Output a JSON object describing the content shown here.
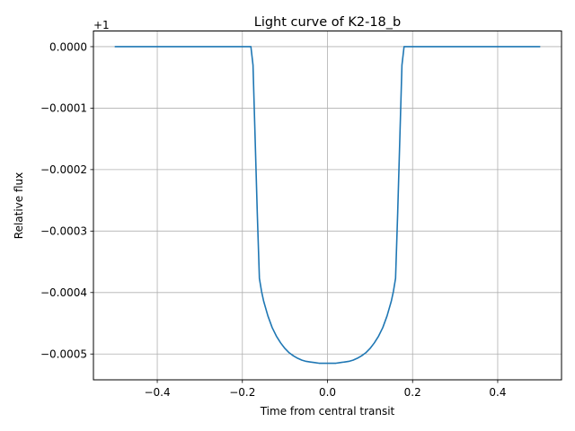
{
  "chart_data": {
    "type": "line",
    "title": "Light curve of K2-18_b",
    "xlabel": "Time from central transit",
    "ylabel": "Relative flux",
    "y_offset_label": "+1",
    "y_offset": 1,
    "xlim": [
      -0.55,
      0.55
    ],
    "ylim": [
      -0.000542,
      2.55e-05
    ],
    "x_ticks": [
      -0.4,
      -0.2,
      0.0,
      0.2,
      0.4
    ],
    "x_tick_labels": [
      "−0.4",
      "−0.2",
      "0.0",
      "0.2",
      "0.4"
    ],
    "y_ticks": [
      0.0,
      -0.0001,
      -0.0002,
      -0.0003,
      -0.0004,
      -0.0005
    ],
    "y_tick_labels": [
      "0.0000",
      "−0.0001",
      "−0.0002",
      "−0.0003",
      "−0.0004",
      "−0.0005"
    ],
    "grid": true,
    "series": [
      {
        "color": "#1f77b4",
        "x": [
          -0.5,
          -0.18,
          -0.175,
          -0.17,
          -0.165,
          -0.16,
          -0.155,
          -0.15,
          -0.14,
          -0.13,
          -0.12,
          -0.11,
          -0.1,
          -0.09,
          -0.08,
          -0.07,
          -0.06,
          -0.05,
          -0.04,
          -0.03,
          -0.02,
          -0.01,
          0.0,
          0.01,
          0.02,
          0.03,
          0.04,
          0.05,
          0.06,
          0.07,
          0.08,
          0.09,
          0.1,
          0.11,
          0.12,
          0.13,
          0.14,
          0.15,
          0.155,
          0.16,
          0.165,
          0.17,
          0.175,
          0.18,
          0.5
        ],
        "y": [
          0.0,
          0.0,
          -3e-05,
          -0.00015,
          -0.00027,
          -0.000377,
          -0.000398,
          -0.000414,
          -0.000438,
          -0.000457,
          -0.000471,
          -0.000482,
          -0.000491,
          -0.000498,
          -0.000503,
          -0.000507,
          -0.00051,
          -0.000512,
          -0.000513,
          -0.000514,
          -0.000515,
          -0.000515,
          -0.000515,
          -0.000515,
          -0.000515,
          -0.000514,
          -0.000513,
          -0.000512,
          -0.00051,
          -0.000507,
          -0.000503,
          -0.000498,
          -0.000491,
          -0.000482,
          -0.000471,
          -0.000457,
          -0.000438,
          -0.000414,
          -0.000398,
          -0.000377,
          -0.00027,
          -0.00015,
          -3e-05,
          0.0,
          0.0
        ]
      }
    ]
  }
}
